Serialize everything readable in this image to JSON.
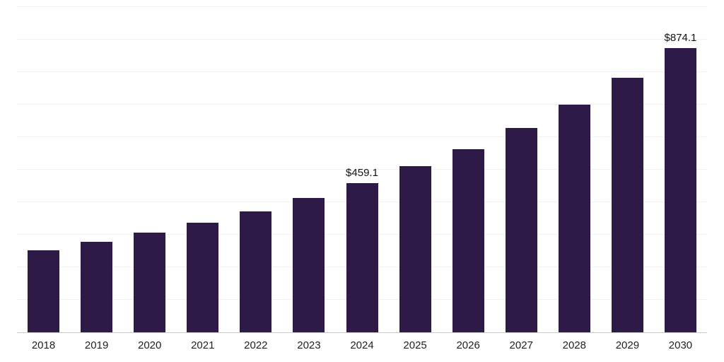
{
  "chart_data": {
    "type": "bar",
    "title": "",
    "xlabel": "",
    "ylabel": "",
    "categories": [
      "2018",
      "2019",
      "2020",
      "2021",
      "2022",
      "2023",
      "2024",
      "2025",
      "2026",
      "2027",
      "2028",
      "2029",
      "2030"
    ],
    "values": [
      253,
      278,
      306,
      337,
      371,
      412,
      459.1,
      510,
      562,
      628,
      700,
      782,
      874.1
    ],
    "data_labels": [
      "",
      "",
      "",
      "",
      "",
      "",
      "$459.1",
      "",
      "",
      "",
      "",
      "",
      "$874.1"
    ],
    "bar_color": "#2E1A47",
    "grid": true,
    "gridline_color": "#f1f1f1",
    "axis_line_color": "#c9c9c9",
    "ylim": [
      0,
      1000
    ],
    "gridline_step": 100,
    "legend": "none"
  }
}
